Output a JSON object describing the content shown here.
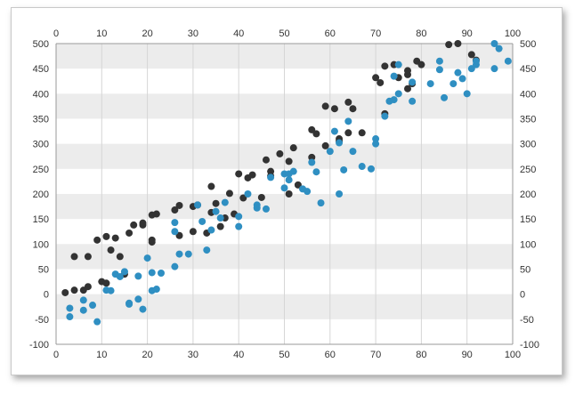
{
  "chart_data": {
    "type": "scatter",
    "title": "",
    "xlabel": "",
    "ylabel": "",
    "xlim": [
      0,
      100
    ],
    "ylim": [
      -100,
      500
    ],
    "x_ticks": [
      0,
      10,
      20,
      30,
      40,
      50,
      60,
      70,
      80,
      90,
      100
    ],
    "y_ticks": [
      -100,
      -50,
      0,
      50,
      100,
      150,
      200,
      250,
      300,
      350,
      400,
      450,
      500
    ],
    "x_axis_positions": [
      "bottom",
      "top"
    ],
    "y_axis_positions": [
      "left",
      "right"
    ],
    "grid": "vertical lines every 10 units; alternating horizontal bands every 50 units",
    "legend": "none",
    "band_color": "#ececec",
    "series": [
      {
        "color": "#333333",
        "points": [
          [
            2,
            3
          ],
          [
            4,
            8
          ],
          [
            4,
            75
          ],
          [
            6,
            8
          ],
          [
            7,
            75
          ],
          [
            7,
            15
          ],
          [
            9,
            108
          ],
          [
            10,
            25
          ],
          [
            11,
            115
          ],
          [
            11,
            22
          ],
          [
            12,
            88
          ],
          [
            13,
            112
          ],
          [
            14,
            75
          ],
          [
            15,
            40
          ],
          [
            16,
            122
          ],
          [
            17,
            138
          ],
          [
            19,
            138
          ],
          [
            19,
            142
          ],
          [
            21,
            108
          ],
          [
            21,
            104
          ],
          [
            21,
            158
          ],
          [
            22,
            160
          ],
          [
            26,
            168
          ],
          [
            27,
            117
          ],
          [
            27,
            177
          ],
          [
            30,
            125
          ],
          [
            30,
            175
          ],
          [
            31,
            178
          ],
          [
            33,
            122
          ],
          [
            34,
            163
          ],
          [
            34,
            215
          ],
          [
            35,
            181
          ],
          [
            36,
            135
          ],
          [
            37,
            152
          ],
          [
            38,
            201
          ],
          [
            39,
            160
          ],
          [
            40,
            240
          ],
          [
            41,
            192
          ],
          [
            42,
            232
          ],
          [
            43,
            238
          ],
          [
            45,
            193
          ],
          [
            46,
            268
          ],
          [
            47,
            245
          ],
          [
            47,
            236
          ],
          [
            49,
            280
          ],
          [
            51,
            200
          ],
          [
            51,
            265
          ],
          [
            52,
            292
          ],
          [
            53,
            218
          ],
          [
            56,
            273
          ],
          [
            56,
            328
          ],
          [
            57,
            320
          ],
          [
            59,
            296
          ],
          [
            59,
            375
          ],
          [
            61,
            370
          ],
          [
            62,
            310
          ],
          [
            62,
            305
          ],
          [
            64,
            322
          ],
          [
            64,
            383
          ],
          [
            65,
            370
          ],
          [
            67,
            322
          ],
          [
            70,
            432
          ],
          [
            71,
            422
          ],
          [
            72,
            455
          ],
          [
            72,
            360
          ],
          [
            74,
            458
          ],
          [
            75,
            432
          ],
          [
            77,
            438
          ],
          [
            77,
            446
          ],
          [
            77,
            410
          ],
          [
            78,
            420
          ],
          [
            79,
            465
          ],
          [
            80,
            458
          ],
          [
            86,
            498
          ],
          [
            88,
            500
          ],
          [
            91,
            478
          ],
          [
            92,
            467
          ]
        ]
      },
      {
        "color": "#2f8fc2",
        "points": [
          [
            3,
            -45
          ],
          [
            3,
            -28
          ],
          [
            6,
            -12
          ],
          [
            6,
            -32
          ],
          [
            8,
            -22
          ],
          [
            9,
            -55
          ],
          [
            11,
            8
          ],
          [
            12,
            7
          ],
          [
            13,
            40
          ],
          [
            14,
            35
          ],
          [
            15,
            45
          ],
          [
            16,
            -18
          ],
          [
            16,
            -20
          ],
          [
            18,
            -10
          ],
          [
            18,
            36
          ],
          [
            19,
            -30
          ],
          [
            20,
            72
          ],
          [
            21,
            43
          ],
          [
            21,
            7
          ],
          [
            22,
            10
          ],
          [
            23,
            42
          ],
          [
            26,
            55
          ],
          [
            26,
            125
          ],
          [
            26,
            143
          ],
          [
            27,
            80
          ],
          [
            29,
            80
          ],
          [
            31,
            178
          ],
          [
            32,
            145
          ],
          [
            33,
            88
          ],
          [
            34,
            128
          ],
          [
            35,
            165
          ],
          [
            36,
            152
          ],
          [
            37,
            183
          ],
          [
            40,
            155
          ],
          [
            40,
            135
          ],
          [
            42,
            200
          ],
          [
            44,
            172
          ],
          [
            44,
            178
          ],
          [
            46,
            170
          ],
          [
            47,
            233
          ],
          [
            50,
            240
          ],
          [
            50,
            212
          ],
          [
            51,
            240
          ],
          [
            51,
            228
          ],
          [
            52,
            245
          ],
          [
            54,
            210
          ],
          [
            55,
            205
          ],
          [
            56,
            263
          ],
          [
            57,
            244
          ],
          [
            58,
            182
          ],
          [
            60,
            285
          ],
          [
            61,
            325
          ],
          [
            62,
            200
          ],
          [
            62,
            302
          ],
          [
            63,
            248
          ],
          [
            64,
            345
          ],
          [
            65,
            285
          ],
          [
            67,
            255
          ],
          [
            69,
            250
          ],
          [
            70,
            310
          ],
          [
            70,
            300
          ],
          [
            72,
            355
          ],
          [
            73,
            385
          ],
          [
            74,
            435
          ],
          [
            74,
            388
          ],
          [
            75,
            458
          ],
          [
            75,
            400
          ],
          [
            78,
            423
          ],
          [
            78,
            385
          ],
          [
            82,
            420
          ],
          [
            84,
            448
          ],
          [
            84,
            465
          ],
          [
            85,
            392
          ],
          [
            87,
            420
          ],
          [
            88,
            442
          ],
          [
            89,
            430
          ],
          [
            90,
            400
          ],
          [
            91,
            450
          ],
          [
            92,
            458
          ],
          [
            92,
            465
          ],
          [
            96,
            500
          ],
          [
            96,
            450
          ],
          [
            97,
            490
          ],
          [
            99,
            465
          ]
        ]
      }
    ]
  }
}
